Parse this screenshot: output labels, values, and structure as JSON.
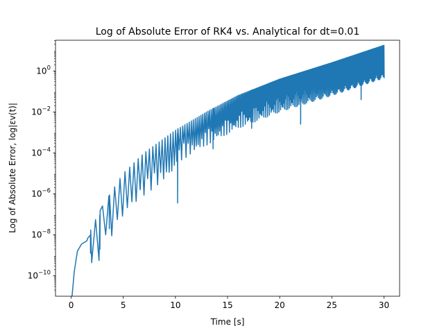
{
  "chart_data": {
    "type": "line",
    "title": "Log of Absolute Error of RK4 vs. Analytical for dt=0.01",
    "xlabel": "Time [s]",
    "ylabel": "Log of Absolute Error,  log|εv(t)|",
    "yscale": "log",
    "xlim": [
      -1.5,
      31.5
    ],
    "ylim_exponent": [
      -11,
      1.5
    ],
    "x_ticks": [
      0,
      5,
      10,
      15,
      20,
      25,
      30
    ],
    "x_tick_labels": [
      "0",
      "5",
      "10",
      "15",
      "20",
      "25",
      "30"
    ],
    "y_ticks_exponent": [
      -10,
      -8,
      -6,
      -4,
      -2,
      0
    ],
    "y_tick_base": "10",
    "y_tick_exponent_labels": [
      "−10",
      "−8",
      "−6",
      "−4",
      "−2",
      "0"
    ],
    "grid": false,
    "series_color": "#1f77b4",
    "envelope": {
      "x": [
        0.05,
        0.3,
        0.6,
        1.0,
        1.5,
        2.0,
        3.0,
        4.0,
        5.0,
        7.0,
        10.0,
        13.0,
        16.0,
        20.0,
        25.0,
        30.0
      ],
      "y_log10": [
        -11.2,
        -9.8,
        -8.8,
        -8.45,
        -8.3,
        -7.6,
        -6.6,
        -5.8,
        -5.0,
        -4.0,
        -2.9,
        -2.0,
        -1.2,
        -0.4,
        0.4,
        1.25
      ]
    },
    "notable_dips": [
      {
        "x": 1.85,
        "y_log10": -8.9
      },
      {
        "x": 2.75,
        "y_log10": -8.7
      },
      {
        "x": 3.65,
        "y_log10": -7.7
      },
      {
        "x": 10.2,
        "y_log10": -6.45
      },
      {
        "x": 13.6,
        "y_log10": -3.8
      },
      {
        "x": 17.3,
        "y_log10": -2.8
      },
      {
        "x": 22.0,
        "y_log10": -2.6
      },
      {
        "x": 27.8,
        "y_log10": -1.4
      }
    ]
  }
}
